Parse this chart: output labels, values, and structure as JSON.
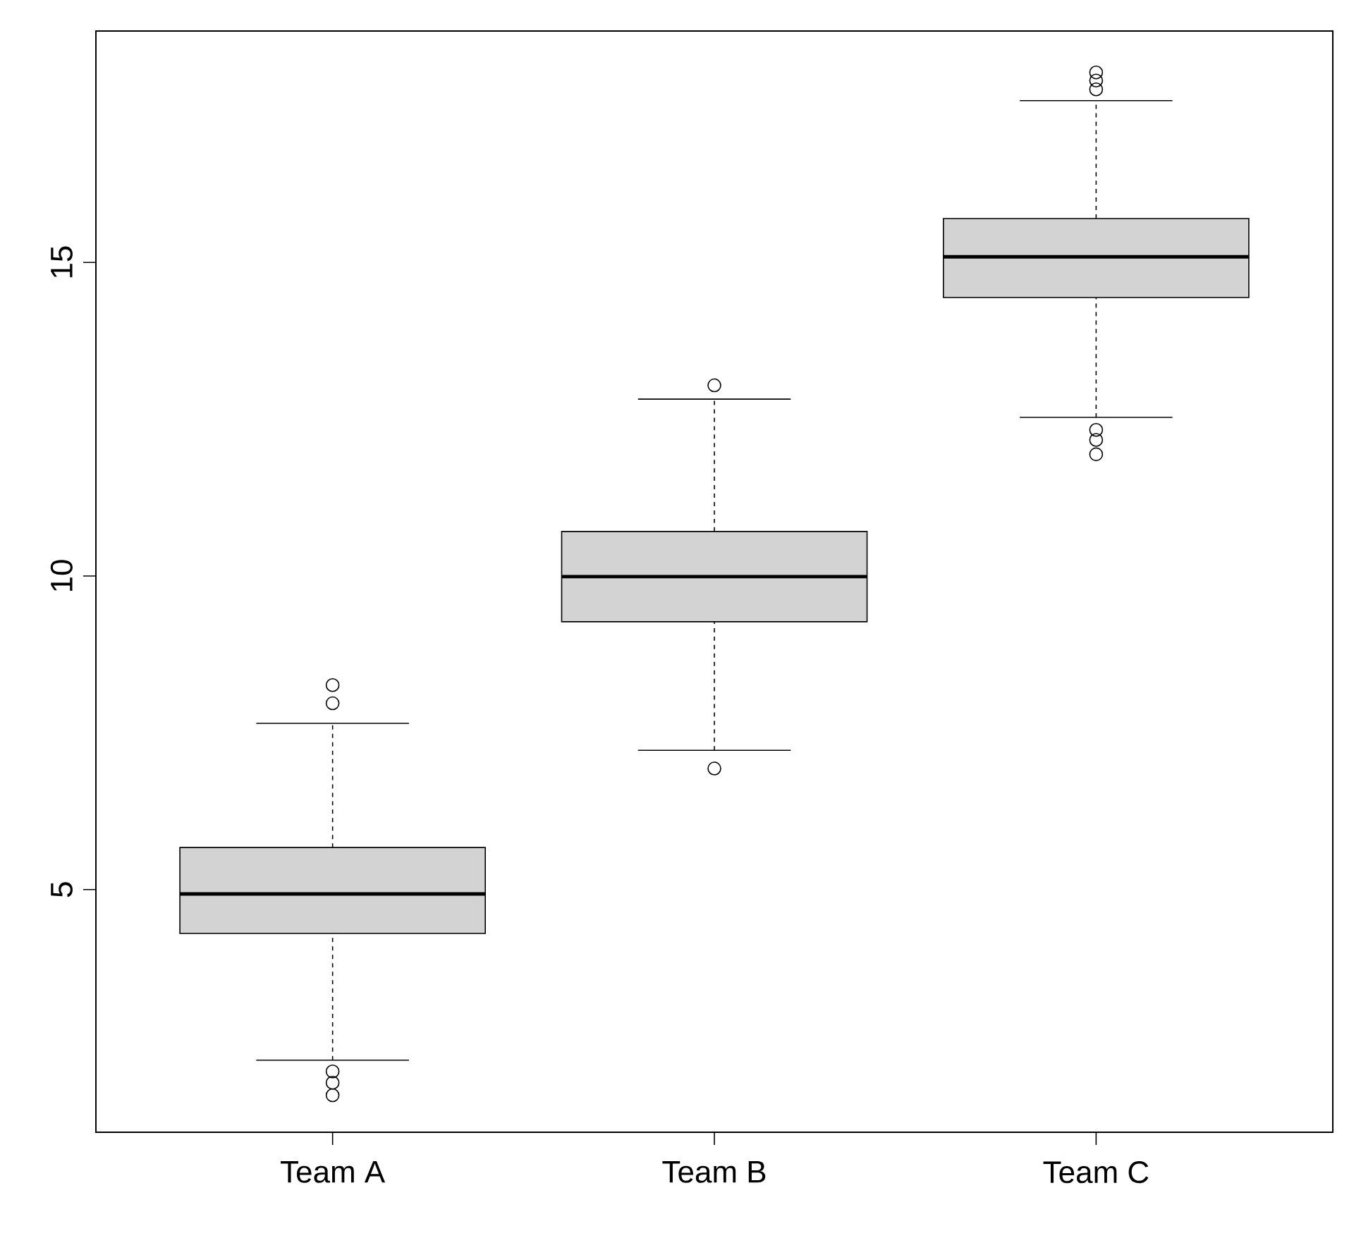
{
  "chart_data": {
    "type": "box",
    "categories": [
      "Team A",
      "Team B",
      "Team C"
    ],
    "color": "#d3d3d3",
    "boxes": [
      {
        "low": 2.28,
        "q1": 4.3,
        "median": 4.93,
        "q3": 5.67,
        "high": 7.65,
        "outliers": [
          8.26,
          7.97,
          2.1,
          1.92,
          1.72
        ]
      },
      {
        "low": 7.22,
        "q1": 9.27,
        "median": 9.99,
        "q3": 10.71,
        "high": 12.82,
        "outliers": [
          13.04,
          6.93
        ]
      },
      {
        "low": 12.53,
        "q1": 14.44,
        "median": 15.09,
        "q3": 15.7,
        "high": 17.58,
        "outliers": [
          18.03,
          17.9,
          17.76,
          12.33,
          12.17,
          11.94
        ]
      }
    ],
    "ylim": [
      1.13,
      18.69
    ],
    "yticks": [
      5,
      10,
      15
    ],
    "marker": "circle"
  }
}
